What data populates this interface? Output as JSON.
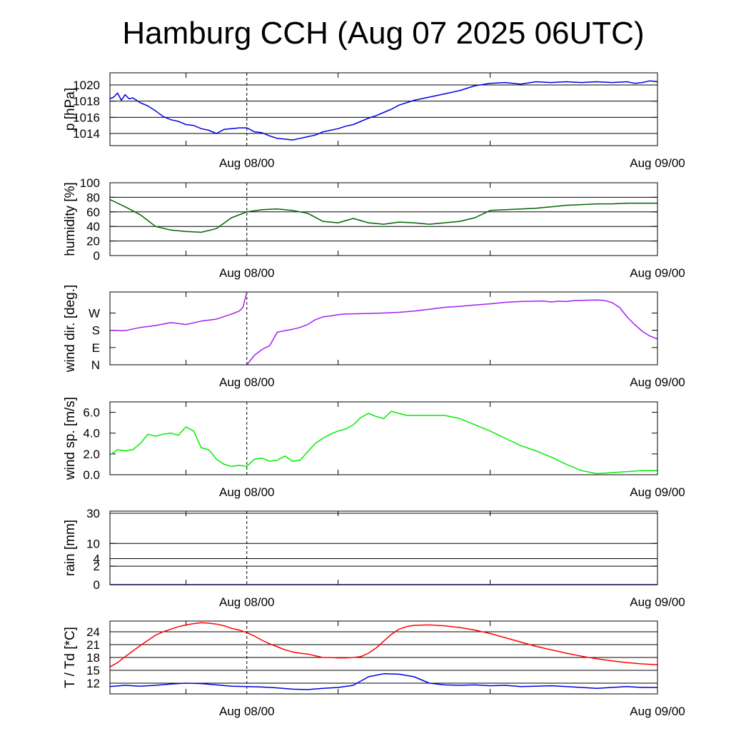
{
  "title": "Hamburg CCH (Aug 07 2025 06UTC)",
  "x_axis": {
    "range_hours": [
      -18,
      54
    ],
    "midnight_line_hour": 0,
    "tick_labels": [
      {
        "hour": 0,
        "label": "Aug 08/00"
      },
      {
        "hour": 54,
        "label": "Aug 09/00"
      }
    ],
    "minor_tick_hours": [
      -8,
      12,
      32
    ]
  },
  "colors": {
    "pressure": "#0000e0",
    "humidity": "#006400",
    "wind_dir": "#a020f0",
    "wind_speed": "#00ee00",
    "rain": "#0000e0",
    "temperature": "#ff0000",
    "dewpoint": "#0000e0"
  },
  "chart_data": [
    {
      "type": "line",
      "ylabel": "p [hPa]",
      "ylim": [
        1012.5,
        1021.5
      ],
      "yticks": [
        1014,
        1016,
        1018,
        1020
      ],
      "ytick_labels": [
        "1014",
        "1016",
        "1018",
        "1020"
      ],
      "grid": true,
      "series": [
        {
          "color_key": "pressure",
          "x": [
            -18,
            -17.5,
            -17,
            -16.5,
            -16,
            -15.5,
            -15,
            -14,
            -13,
            -12,
            -11,
            -10,
            -9,
            -8,
            -7,
            -6,
            -5,
            -4,
            -3,
            -2,
            -1,
            0,
            1,
            2,
            3,
            4,
            5,
            6,
            7,
            8,
            9,
            10,
            11,
            12,
            13,
            14,
            15,
            16,
            17,
            18,
            19,
            20,
            22,
            24,
            26,
            28,
            30,
            32,
            34,
            36,
            38,
            40,
            42,
            44,
            46,
            48,
            50,
            51,
            52,
            53,
            54
          ],
          "y": [
            1018.3,
            1018.5,
            1019.0,
            1018.1,
            1018.8,
            1018.3,
            1018.4,
            1017.8,
            1017.4,
            1016.8,
            1016.1,
            1015.7,
            1015.5,
            1015.1,
            1015.0,
            1014.6,
            1014.4,
            1014.0,
            1014.5,
            1014.6,
            1014.7,
            1014.7,
            1014.2,
            1014.1,
            1013.7,
            1013.4,
            1013.3,
            1013.2,
            1013.4,
            1013.6,
            1013.8,
            1014.2,
            1014.4,
            1014.6,
            1014.9,
            1015.1,
            1015.5,
            1015.9,
            1016.2,
            1016.6,
            1017.0,
            1017.5,
            1018.1,
            1018.5,
            1018.9,
            1019.3,
            1019.9,
            1020.2,
            1020.3,
            1020.1,
            1020.4,
            1020.3,
            1020.4,
            1020.3,
            1020.4,
            1020.3,
            1020.4,
            1020.2,
            1020.3,
            1020.5,
            1020.4
          ]
        }
      ]
    },
    {
      "type": "line",
      "ylabel": "humidity [%]",
      "ylim": [
        0,
        100
      ],
      "yticks": [
        0,
        20,
        40,
        60,
        80,
        100
      ],
      "ytick_labels": [
        "0",
        "20",
        "40",
        "60",
        "80",
        "100"
      ],
      "grid": true,
      "series": [
        {
          "color_key": "humidity",
          "x": [
            -18,
            -16,
            -14,
            -12,
            -10,
            -8,
            -6,
            -4,
            -2,
            0,
            2,
            4,
            6,
            8,
            10,
            12,
            14,
            16,
            18,
            20,
            22,
            24,
            26,
            28,
            30,
            32,
            34,
            36,
            38,
            40,
            42,
            44,
            46,
            48,
            50,
            52,
            54
          ],
          "y": [
            77,
            67,
            56,
            40,
            35,
            33,
            32,
            37,
            52,
            60,
            63,
            64,
            62,
            58,
            47,
            45,
            51,
            45,
            43,
            46,
            45,
            43,
            45,
            47,
            52,
            62,
            63,
            64,
            65,
            67,
            69,
            70,
            71,
            71,
            72,
            72,
            72
          ]
        }
      ]
    },
    {
      "type": "line",
      "ylabel": "wind dir. [deg.]",
      "ylim": [
        0,
        380
      ],
      "yticks": [
        0,
        90,
        180,
        270
      ],
      "ytick_labels": [
        "N",
        "E",
        "S",
        "W"
      ],
      "grid": false,
      "series": [
        {
          "color_key": "wind_dir",
          "x": [
            -18,
            -16,
            -14,
            -12,
            -10,
            -8,
            -6,
            -4,
            -3,
            -2,
            -1,
            -0.5,
            0,
            1,
            2,
            3,
            4,
            5,
            6,
            7,
            8,
            9,
            10,
            11,
            12,
            13,
            14,
            16,
            18,
            20,
            22,
            24,
            26,
            28,
            30,
            32,
            34,
            36,
            38,
            39,
            40,
            41,
            42,
            43,
            44,
            45,
            46,
            47,
            48,
            49,
            50,
            51,
            52,
            53,
            54
          ],
          "y": [
            180,
            178,
            195,
            205,
            220,
            210,
            228,
            238,
            252,
            265,
            280,
            300,
            0,
            50,
            80,
            100,
            170,
            178,
            185,
            195,
            210,
            235,
            250,
            255,
            262,
            265,
            266,
            268,
            270,
            274,
            280,
            290,
            300,
            305,
            312,
            318,
            326,
            330,
            332,
            333,
            328,
            332,
            330,
            335,
            336,
            337,
            338,
            336,
            325,
            300,
            250,
            210,
            175,
            150,
            135
          ]
        }
      ]
    },
    {
      "type": "line",
      "ylabel": "wind sp. [m/s]",
      "ylim": [
        0,
        7
      ],
      "yticks": [
        0,
        2,
        4,
        6
      ],
      "ytick_labels": [
        "0.0",
        "2.0",
        "4.0",
        "6.0"
      ],
      "grid": false,
      "series": [
        {
          "color_key": "wind_speed",
          "x": [
            -18,
            -17,
            -16,
            -15,
            -14,
            -13,
            -12,
            -11,
            -10,
            -9,
            -8,
            -7,
            -6,
            -5,
            -4,
            -3,
            -2,
            -1,
            0,
            1,
            2,
            3,
            4,
            5,
            6,
            7,
            8,
            9,
            10,
            11,
            12,
            13,
            14,
            15,
            16,
            17,
            18,
            19,
            20,
            21,
            22,
            24,
            26,
            28,
            30,
            32,
            34,
            36,
            38,
            40,
            42,
            44,
            46,
            48,
            50,
            52,
            54
          ],
          "y": [
            1.9,
            2.4,
            2.3,
            2.4,
            3.0,
            3.9,
            3.7,
            3.9,
            4.0,
            3.8,
            4.6,
            4.2,
            2.6,
            2.4,
            1.5,
            1.0,
            0.8,
            0.9,
            0.8,
            1.5,
            1.6,
            1.3,
            1.4,
            1.8,
            1.3,
            1.4,
            2.2,
            3.0,
            3.5,
            3.9,
            4.2,
            4.4,
            4.8,
            5.5,
            5.9,
            5.6,
            5.4,
            6.1,
            5.9,
            5.7,
            5.7,
            5.7,
            5.7,
            5.4,
            4.8,
            4.2,
            3.5,
            2.8,
            2.3,
            1.7,
            1.0,
            0.4,
            0.1,
            0.2,
            0.3,
            0.4,
            0.4
          ]
        }
      ]
    },
    {
      "type": "line",
      "ylabel": "rain [mm]",
      "ylim": [
        0,
        30
      ],
      "yticks": [
        0,
        2,
        4,
        10,
        30
      ],
      "ytick_labels": [
        "0",
        "2",
        "4",
        "10",
        "30"
      ],
      "grid": true,
      "series": [
        {
          "color_key": "rain",
          "x": [
            -18,
            54
          ],
          "y": [
            0,
            0
          ]
        }
      ]
    },
    {
      "type": "line",
      "ylabel": "T / Td [*C]",
      "ylim": [
        9.5,
        26.5
      ],
      "yticks": [
        12,
        15,
        18,
        21,
        24
      ],
      "ytick_labels": [
        "12",
        "15",
        "18",
        "21",
        "24"
      ],
      "grid": true,
      "series": [
        {
          "color_key": "temperature",
          "x": [
            -18,
            -17,
            -16,
            -15,
            -14,
            -13,
            -12,
            -11,
            -10,
            -9,
            -8,
            -7,
            -6,
            -5,
            -4,
            -3,
            -2,
            -1,
            0,
            1,
            2,
            3,
            4,
            5,
            6,
            7,
            8,
            9,
            10,
            11,
            12,
            13,
            14,
            15,
            16,
            17,
            18,
            19,
            20,
            21,
            22,
            24,
            26,
            28,
            30,
            32,
            34,
            36,
            38,
            40,
            42,
            44,
            46,
            48,
            50,
            52,
            54
          ],
          "y": [
            15.8,
            16.8,
            18.2,
            19.5,
            20.8,
            22.0,
            23.2,
            24.0,
            24.6,
            25.2,
            25.6,
            25.9,
            26.1,
            26.0,
            25.8,
            25.4,
            24.8,
            24.4,
            23.8,
            23.0,
            22.0,
            21.2,
            20.5,
            19.8,
            19.3,
            19.0,
            18.8,
            18.4,
            18.0,
            18.0,
            17.9,
            17.9,
            18.0,
            18.2,
            19.0,
            20.2,
            21.8,
            23.4,
            24.6,
            25.2,
            25.5,
            25.6,
            25.4,
            25.0,
            24.4,
            23.6,
            22.6,
            21.6,
            20.6,
            19.8,
            19.0,
            18.3,
            17.7,
            17.2,
            16.8,
            16.5,
            16.3
          ]
        },
        {
          "color_key": "dewpoint",
          "x": [
            -18,
            -16,
            -14,
            -12,
            -10,
            -8,
            -6,
            -4,
            -2,
            0,
            2,
            4,
            6,
            8,
            10,
            12,
            14,
            16,
            18,
            20,
            22,
            24,
            26,
            28,
            30,
            32,
            34,
            36,
            38,
            40,
            42,
            44,
            46,
            48,
            50,
            52,
            54
          ],
          "y": [
            11.2,
            11.5,
            11.3,
            11.5,
            11.8,
            12.0,
            11.9,
            11.6,
            11.3,
            11.2,
            11.1,
            10.9,
            10.6,
            10.5,
            10.8,
            11.0,
            11.5,
            13.5,
            14.2,
            14.1,
            13.5,
            12.0,
            11.6,
            11.5,
            11.6,
            11.4,
            11.5,
            11.2,
            11.3,
            11.4,
            11.2,
            11.0,
            10.8,
            11.0,
            11.2,
            11.0,
            11.0
          ]
        }
      ]
    }
  ]
}
